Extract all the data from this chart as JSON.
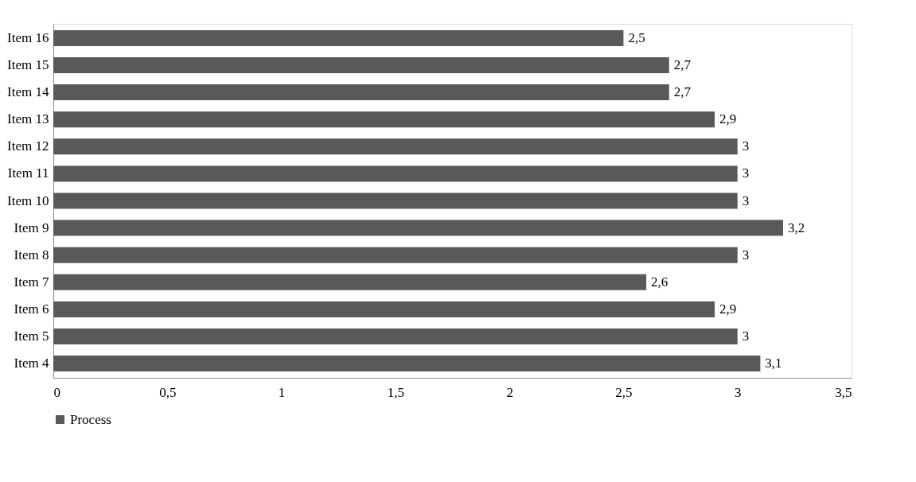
{
  "chart_data": {
    "type": "bar",
    "orientation": "horizontal",
    "categories": [
      "Item 16",
      "Item 15",
      "Item 14",
      "Item 13",
      "Item 12",
      "Item 11",
      "Item 10",
      "Item 9",
      "Item 8",
      "Item 7",
      "Item 6",
      "Item 5",
      "Item 4"
    ],
    "series": [
      {
        "name": "Process",
        "color": "#595959",
        "values": [
          2.5,
          2.7,
          2.7,
          2.9,
          3,
          3,
          3,
          3.2,
          3,
          2.6,
          2.9,
          3,
          3.1
        ],
        "value_labels": [
          "2,5",
          "2,7",
          "2,7",
          "2,9",
          "3",
          "3",
          "3",
          "3,2",
          "3",
          "2,6",
          "2,9",
          "3",
          "3,1"
        ]
      }
    ],
    "xlim": [
      0,
      3.5
    ],
    "xticks": [
      0,
      {
        "value": 0.5,
        "label": "0,5"
      },
      1,
      {
        "value": 1.5,
        "label": "1,5"
      },
      2,
      {
        "value": 2.5,
        "label": "2,5"
      },
      3,
      {
        "value": 3.5,
        "label": "3,5"
      }
    ],
    "grid": false,
    "legend": "bottom"
  }
}
